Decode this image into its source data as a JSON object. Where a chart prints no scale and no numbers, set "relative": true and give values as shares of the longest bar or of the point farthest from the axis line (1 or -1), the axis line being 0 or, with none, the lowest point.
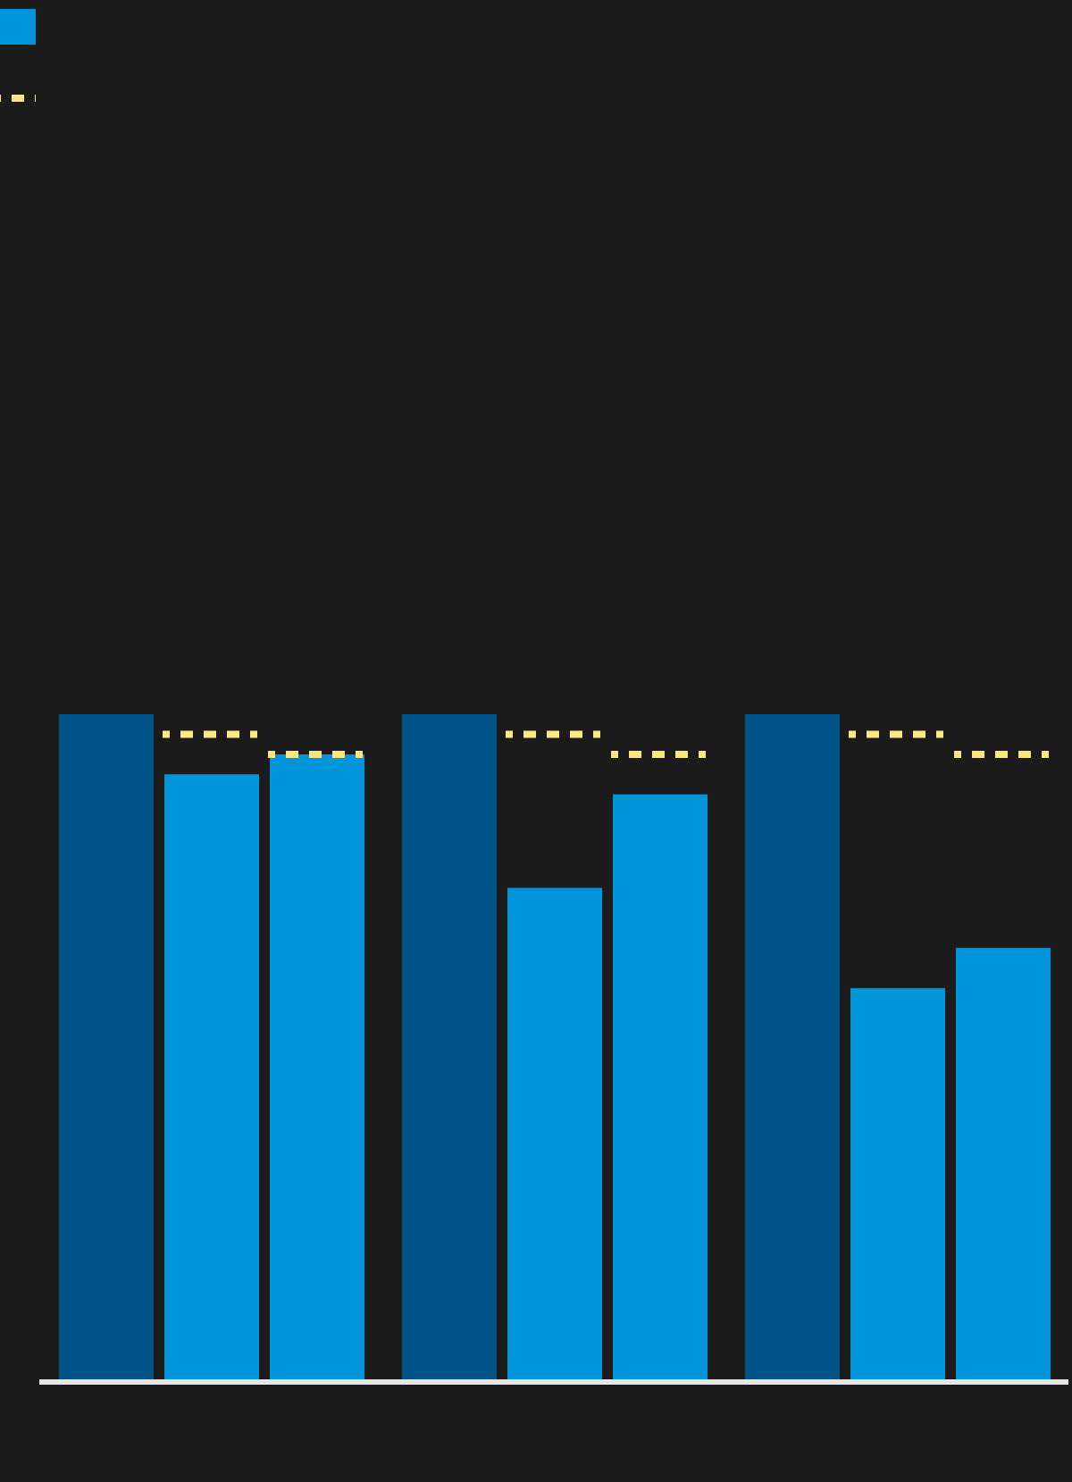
{
  "chart_data": {
    "type": "bar",
    "relative": true,
    "categories": [
      null,
      null,
      null
    ],
    "series": [
      {
        "color": "#005488",
        "values": [
          1,
          1,
          1
        ]
      },
      {
        "color": "#0095db",
        "values": [
          0.91,
          0.74,
          0.59
        ]
      },
      {
        "color": "#0095db",
        "values": [
          0.94,
          0.88,
          0.65
        ]
      }
    ],
    "ref_lines": [
      {
        "axis": "y",
        "value": 0.97,
        "color": "#fbe77f",
        "line_style": "dashed"
      },
      {
        "axis": "y",
        "value": 0.94,
        "color": "#fbe77f",
        "line_style": "dashed"
      }
    ]
  }
}
